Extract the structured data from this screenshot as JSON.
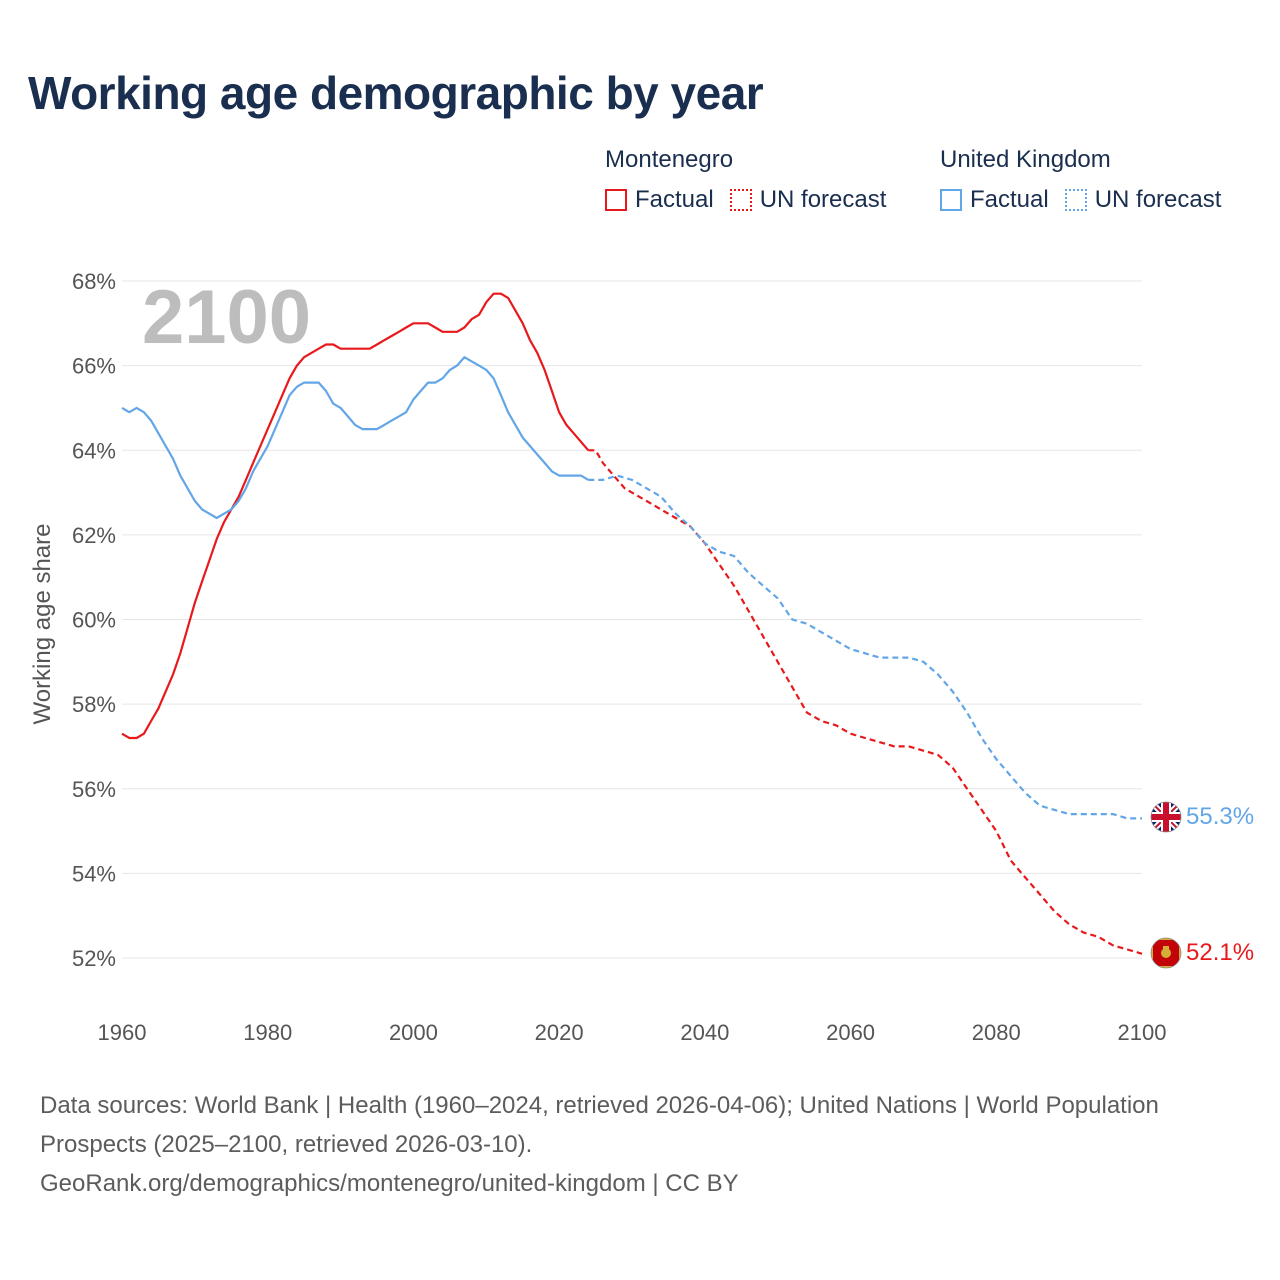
{
  "title": "Working age demographic by year",
  "legend": {
    "groups": [
      {
        "country": "Montenegro",
        "factual_label": "Factual",
        "forecast_label": "UN forecast",
        "color": "#e8191b"
      },
      {
        "country": "United Kingdom",
        "factual_label": "Factual",
        "forecast_label": "UN forecast",
        "color": "#63a6e8"
      }
    ]
  },
  "footer": {
    "sources": "Data sources: World Bank | Health (1960–2024, retrieved 2026-04-06); United Nations | World Population Prospects (2025–2100, retrieved 2026-03-10).",
    "attribution": "GeoRank.org/demographics/montenegro/united-kingdom | CC BY"
  },
  "chart_data": {
    "type": "line",
    "title": "Working age demographic by year",
    "watermark_year": "2100",
    "xlabel": "",
    "ylabel": "Working age share",
    "xlim": [
      1960,
      2100
    ],
    "ylim": [
      51,
      68
    ],
    "x_ticks": [
      1960,
      1980,
      2000,
      2020,
      2040,
      2060,
      2080,
      2100
    ],
    "y_ticks": [
      52,
      54,
      56,
      58,
      60,
      62,
      64,
      66,
      68
    ],
    "y_tick_suffix": "%",
    "gridlines": true,
    "series": [
      {
        "name": "Montenegro",
        "color": "#e8191b",
        "end_label": "52.1%",
        "end_icon": "montenegro-flag-icon",
        "factual": [
          [
            1960,
            57.3
          ],
          [
            1961,
            57.2
          ],
          [
            1962,
            57.2
          ],
          [
            1963,
            57.3
          ],
          [
            1964,
            57.6
          ],
          [
            1965,
            57.9
          ],
          [
            1966,
            58.3
          ],
          [
            1967,
            58.7
          ],
          [
            1968,
            59.2
          ],
          [
            1969,
            59.8
          ],
          [
            1970,
            60.4
          ],
          [
            1971,
            60.9
          ],
          [
            1972,
            61.4
          ],
          [
            1973,
            61.9
          ],
          [
            1974,
            62.3
          ],
          [
            1975,
            62.6
          ],
          [
            1976,
            62.9
          ],
          [
            1977,
            63.3
          ],
          [
            1978,
            63.7
          ],
          [
            1979,
            64.1
          ],
          [
            1980,
            64.5
          ],
          [
            1981,
            64.9
          ],
          [
            1982,
            65.3
          ],
          [
            1983,
            65.7
          ],
          [
            1984,
            66.0
          ],
          [
            1985,
            66.2
          ],
          [
            1986,
            66.3
          ],
          [
            1987,
            66.4
          ],
          [
            1988,
            66.5
          ],
          [
            1989,
            66.5
          ],
          [
            1990,
            66.4
          ],
          [
            1991,
            66.4
          ],
          [
            1992,
            66.4
          ],
          [
            1993,
            66.4
          ],
          [
            1994,
            66.4
          ],
          [
            1995,
            66.5
          ],
          [
            1996,
            66.6
          ],
          [
            1997,
            66.7
          ],
          [
            1998,
            66.8
          ],
          [
            1999,
            66.9
          ],
          [
            2000,
            67.0
          ],
          [
            2001,
            67.0
          ],
          [
            2002,
            67.0
          ],
          [
            2003,
            66.9
          ],
          [
            2004,
            66.8
          ],
          [
            2005,
            66.8
          ],
          [
            2006,
            66.8
          ],
          [
            2007,
            66.9
          ],
          [
            2008,
            67.1
          ],
          [
            2009,
            67.2
          ],
          [
            2010,
            67.5
          ],
          [
            2011,
            67.7
          ],
          [
            2012,
            67.7
          ],
          [
            2013,
            67.6
          ],
          [
            2014,
            67.3
          ],
          [
            2015,
            67.0
          ],
          [
            2016,
            66.6
          ],
          [
            2017,
            66.3
          ],
          [
            2018,
            65.9
          ],
          [
            2019,
            65.4
          ],
          [
            2020,
            64.9
          ],
          [
            2021,
            64.6
          ],
          [
            2022,
            64.4
          ],
          [
            2023,
            64.2
          ],
          [
            2024,
            64.0
          ]
        ],
        "forecast": [
          [
            2024,
            64.0
          ],
          [
            2025,
            64.0
          ],
          [
            2026,
            63.7
          ],
          [
            2027,
            63.5
          ],
          [
            2028,
            63.3
          ],
          [
            2029,
            63.1
          ],
          [
            2030,
            63.0
          ],
          [
            2032,
            62.8
          ],
          [
            2034,
            62.6
          ],
          [
            2036,
            62.4
          ],
          [
            2038,
            62.2
          ],
          [
            2040,
            61.8
          ],
          [
            2042,
            61.3
          ],
          [
            2044,
            60.8
          ],
          [
            2046,
            60.2
          ],
          [
            2048,
            59.6
          ],
          [
            2050,
            59.0
          ],
          [
            2052,
            58.4
          ],
          [
            2054,
            57.8
          ],
          [
            2056,
            57.6
          ],
          [
            2058,
            57.5
          ],
          [
            2060,
            57.3
          ],
          [
            2062,
            57.2
          ],
          [
            2064,
            57.1
          ],
          [
            2066,
            57.0
          ],
          [
            2068,
            57.0
          ],
          [
            2070,
            56.9
          ],
          [
            2072,
            56.8
          ],
          [
            2074,
            56.5
          ],
          [
            2076,
            56.0
          ],
          [
            2078,
            55.5
          ],
          [
            2080,
            55.0
          ],
          [
            2082,
            54.3
          ],
          [
            2084,
            53.9
          ],
          [
            2086,
            53.5
          ],
          [
            2088,
            53.1
          ],
          [
            2090,
            52.8
          ],
          [
            2092,
            52.6
          ],
          [
            2094,
            52.5
          ],
          [
            2096,
            52.3
          ],
          [
            2098,
            52.2
          ],
          [
            2100,
            52.1
          ]
        ]
      },
      {
        "name": "United Kingdom",
        "color": "#63a6e8",
        "end_label": "55.3%",
        "end_icon": "united-kingdom-flag-icon",
        "factual": [
          [
            1960,
            65.0
          ],
          [
            1961,
            64.9
          ],
          [
            1962,
            65.0
          ],
          [
            1963,
            64.9
          ],
          [
            1964,
            64.7
          ],
          [
            1965,
            64.4
          ],
          [
            1966,
            64.1
          ],
          [
            1967,
            63.8
          ],
          [
            1968,
            63.4
          ],
          [
            1969,
            63.1
          ],
          [
            1970,
            62.8
          ],
          [
            1971,
            62.6
          ],
          [
            1972,
            62.5
          ],
          [
            1973,
            62.4
          ],
          [
            1974,
            62.5
          ],
          [
            1975,
            62.6
          ],
          [
            1976,
            62.8
          ],
          [
            1977,
            63.1
          ],
          [
            1978,
            63.5
          ],
          [
            1979,
            63.8
          ],
          [
            1980,
            64.1
          ],
          [
            1981,
            64.5
          ],
          [
            1982,
            64.9
          ],
          [
            1983,
            65.3
          ],
          [
            1984,
            65.5
          ],
          [
            1985,
            65.6
          ],
          [
            1986,
            65.6
          ],
          [
            1987,
            65.6
          ],
          [
            1988,
            65.4
          ],
          [
            1989,
            65.1
          ],
          [
            1990,
            65.0
          ],
          [
            1991,
            64.8
          ],
          [
            1992,
            64.6
          ],
          [
            1993,
            64.5
          ],
          [
            1994,
            64.5
          ],
          [
            1995,
            64.5
          ],
          [
            1996,
            64.6
          ],
          [
            1997,
            64.7
          ],
          [
            1998,
            64.8
          ],
          [
            1999,
            64.9
          ],
          [
            2000,
            65.2
          ],
          [
            2001,
            65.4
          ],
          [
            2002,
            65.6
          ],
          [
            2003,
            65.6
          ],
          [
            2004,
            65.7
          ],
          [
            2005,
            65.9
          ],
          [
            2006,
            66.0
          ],
          [
            2007,
            66.2
          ],
          [
            2008,
            66.1
          ],
          [
            2009,
            66.0
          ],
          [
            2010,
            65.9
          ],
          [
            2011,
            65.7
          ],
          [
            2012,
            65.3
          ],
          [
            2013,
            64.9
          ],
          [
            2014,
            64.6
          ],
          [
            2015,
            64.3
          ],
          [
            2016,
            64.1
          ],
          [
            2017,
            63.9
          ],
          [
            2018,
            63.7
          ],
          [
            2019,
            63.5
          ],
          [
            2020,
            63.4
          ],
          [
            2021,
            63.4
          ],
          [
            2022,
            63.4
          ],
          [
            2023,
            63.4
          ],
          [
            2024,
            63.3
          ]
        ],
        "forecast": [
          [
            2024,
            63.3
          ],
          [
            2026,
            63.3
          ],
          [
            2028,
            63.4
          ],
          [
            2030,
            63.3
          ],
          [
            2032,
            63.1
          ],
          [
            2034,
            62.9
          ],
          [
            2036,
            62.5
          ],
          [
            2038,
            62.2
          ],
          [
            2040,
            61.8
          ],
          [
            2042,
            61.6
          ],
          [
            2044,
            61.5
          ],
          [
            2046,
            61.1
          ],
          [
            2048,
            60.8
          ],
          [
            2050,
            60.5
          ],
          [
            2052,
            60.0
          ],
          [
            2054,
            59.9
          ],
          [
            2056,
            59.7
          ],
          [
            2058,
            59.5
          ],
          [
            2060,
            59.3
          ],
          [
            2062,
            59.2
          ],
          [
            2064,
            59.1
          ],
          [
            2066,
            59.1
          ],
          [
            2068,
            59.1
          ],
          [
            2070,
            59.0
          ],
          [
            2072,
            58.7
          ],
          [
            2074,
            58.3
          ],
          [
            2076,
            57.8
          ],
          [
            2078,
            57.2
          ],
          [
            2080,
            56.7
          ],
          [
            2082,
            56.3
          ],
          [
            2084,
            55.9
          ],
          [
            2086,
            55.6
          ],
          [
            2088,
            55.5
          ],
          [
            2090,
            55.4
          ],
          [
            2092,
            55.4
          ],
          [
            2094,
            55.4
          ],
          [
            2096,
            55.4
          ],
          [
            2098,
            55.3
          ],
          [
            2100,
            55.3
          ]
        ]
      }
    ]
  }
}
